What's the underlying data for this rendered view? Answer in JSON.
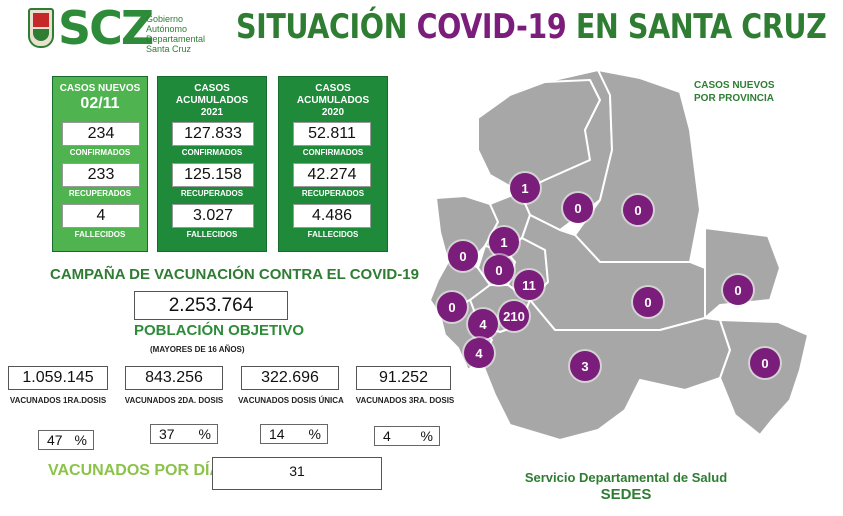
{
  "header": {
    "logo_text": "SCZ",
    "gov_lines": [
      "Gobierno",
      "Autónomo",
      "Departamental",
      "Santa Cruz"
    ],
    "title_part1": "SITUACIÓN",
    "title_part2": "COVID-19",
    "title_part3": "EN SANTA CRUZ"
  },
  "cards": {
    "new": {
      "title": "CASOS NUEVOS",
      "subtitle": "02/11",
      "confirmados": "234",
      "recuperados": "233",
      "fallecidos": "4"
    },
    "acc2021": {
      "title": "CASOS ACUMULADOS",
      "subtitle": "2021",
      "confirmados": "127.833",
      "recuperados": "125.158",
      "fallecidos": "3.027"
    },
    "acc2020": {
      "title": "CASOS ACUMULADOS",
      "subtitle": "2020",
      "confirmados": "52.811",
      "recuperados": "42.274",
      "fallecidos": "4.486"
    },
    "labels": {
      "confirmados": "CONFIRMADOS",
      "recuperados": "RECUPERADOS",
      "fallecidos": "FALLECIDOS"
    }
  },
  "vaccination": {
    "title": "CAMPAÑA DE VACUNACIÓN CONTRA EL COVID-19",
    "target_population": "2.253.764",
    "target_label": "POBLACIÓN OBJETIVO",
    "target_sublabel": "(MAYORES DE 16 AÑOS)",
    "doses": [
      {
        "value": "1.059.145",
        "label": "VACUNADOS 1RA.DOSIS",
        "percent": "47",
        "unit": "%"
      },
      {
        "value": "843.256",
        "label": "VACUNADOS 2DA. DOSIS",
        "percent": "37",
        "unit": "%"
      },
      {
        "value": "322.696",
        "label": "VACUNADOS DOSIS ÚNICA",
        "percent": "14",
        "unit": "%"
      },
      {
        "value": "91.252",
        "label": "VACUNADOS 3RA. DOSIS",
        "percent": "4",
        "unit": "%"
      }
    ],
    "per_day_label": "VACUNADOS POR DÍA",
    "per_day_value": "31"
  },
  "map": {
    "title_line1": "CASOS NUEVOS",
    "title_line2": "POR PROVINCIA",
    "province_counts": [
      "1",
      "0",
      "0",
      "1",
      "0",
      "0",
      "11",
      "0",
      "0",
      "210",
      "4",
      "4",
      "0",
      "3",
      "0"
    ],
    "colors": {
      "land": "#a7a7a7",
      "border": "#ffffff",
      "bubble": "#7b1d7a"
    }
  },
  "footer": {
    "line1": "Servicio Departamental de Salud",
    "line2": "SEDES"
  },
  "colors": {
    "dark_green": "#1e8a3a",
    "light_green": "#4fb34f",
    "title_green": "#2e7d32",
    "purple": "#7b1d7a"
  }
}
